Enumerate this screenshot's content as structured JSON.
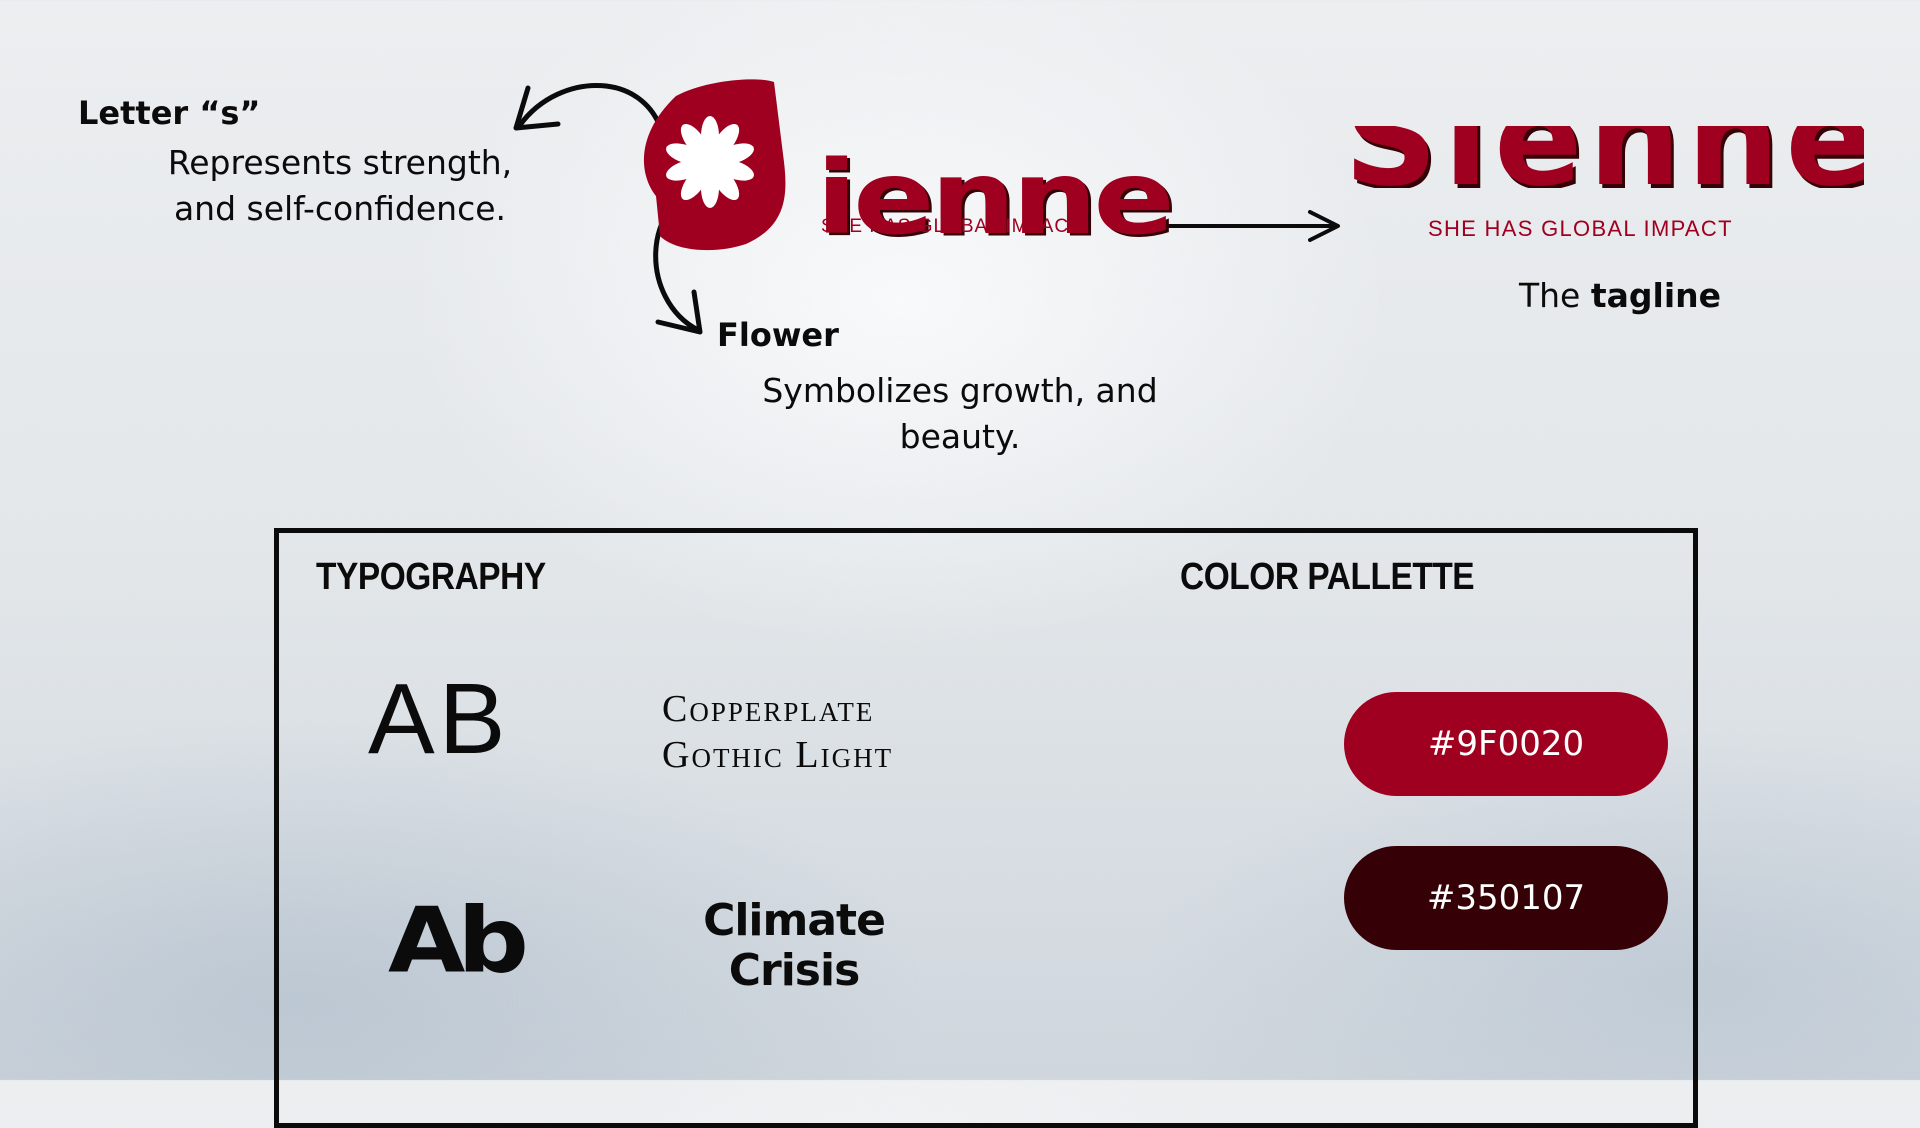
{
  "annotations": {
    "letter_title": "Letter “s”",
    "letter_desc": "Represents strength, and self-confidence.",
    "flower_title": "Flower",
    "flower_desc": "Symbolizes growth, and beauty.",
    "tagline_prefix": "The ",
    "tagline_bold": "tagline"
  },
  "logo": {
    "word": "ienne",
    "tagline": "SHE HAS GLOBAL IMPACT",
    "cropped_word": "Sienne",
    "cropped_tagline": "SHE HAS GLOBAL IMPACT"
  },
  "typography": {
    "title": "TYPOGRAPHY",
    "fonts": [
      {
        "sample": "AB",
        "name": "Copperplate Gothic Light"
      },
      {
        "sample": "Ab",
        "name": "Climate Crisis"
      }
    ]
  },
  "palette": {
    "title": "COLOR PALLETTE",
    "colors": [
      {
        "label": "#9F0020",
        "hex": "#9F0020"
      },
      {
        "label": "#350107",
        "hex": "#350107"
      }
    ]
  }
}
